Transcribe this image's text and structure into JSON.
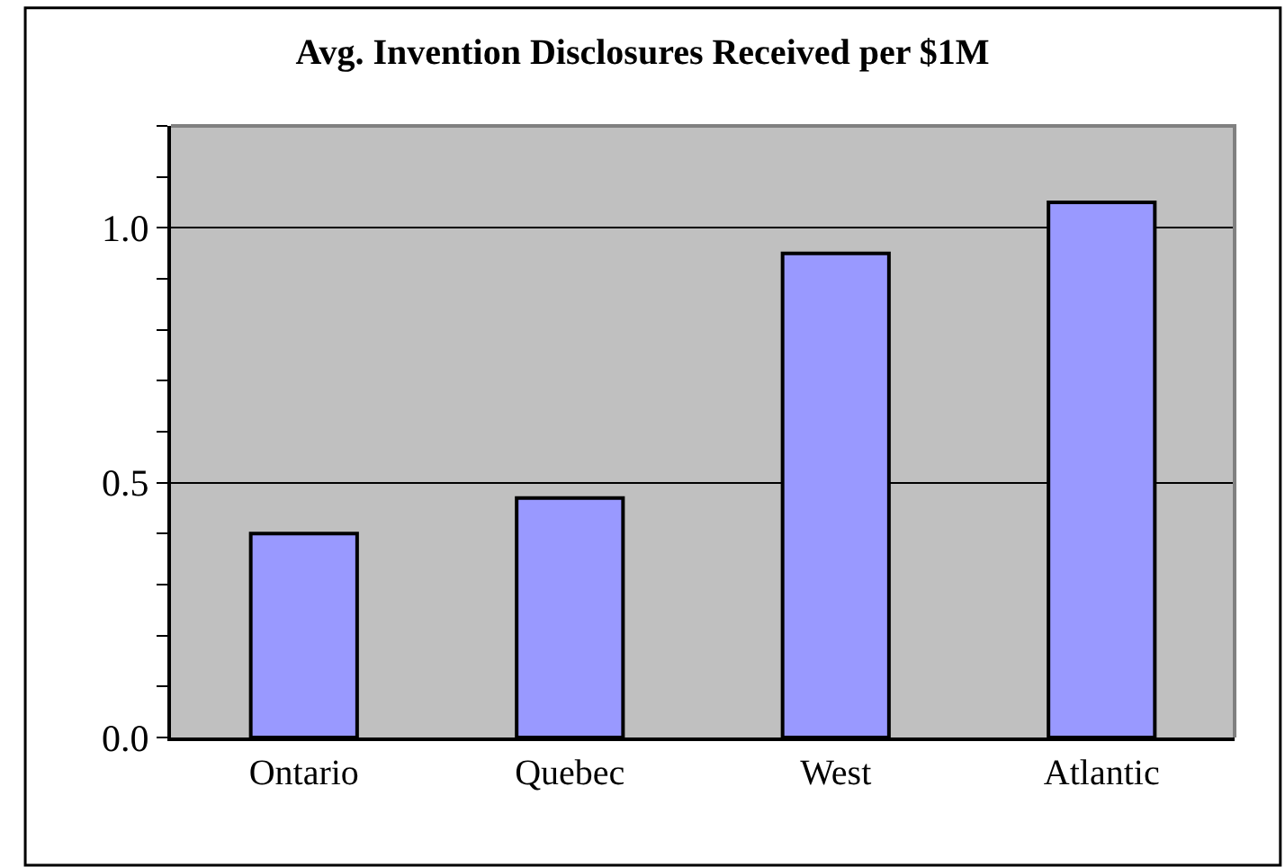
{
  "chart_data": {
    "type": "bar",
    "title": "Avg. Invention Disclosures Received per $1M",
    "categories": [
      "Ontario",
      "Quebec",
      "West",
      "Atlantic"
    ],
    "values": [
      0.4,
      0.47,
      0.95,
      1.05
    ],
    "color": "#9999ff",
    "ylim": [
      0,
      1.2
    ],
    "yticks": [
      {
        "value": 0,
        "label": "0.0"
      },
      {
        "value": 0.1,
        "label": null
      },
      {
        "value": 0.2,
        "label": null
      },
      {
        "value": 0.3,
        "label": null
      },
      {
        "value": 0.4,
        "label": null
      },
      {
        "value": 0.5,
        "label": "0.5"
      },
      {
        "value": 0.6,
        "label": null
      },
      {
        "value": 0.7,
        "label": null
      },
      {
        "value": 0.8,
        "label": null
      },
      {
        "value": 0.9,
        "label": null
      },
      {
        "value": 1.0,
        "label": "1.0"
      },
      {
        "value": 1.1,
        "label": null
      },
      {
        "value": 1.2,
        "label": null
      }
    ],
    "grid": "y"
  }
}
